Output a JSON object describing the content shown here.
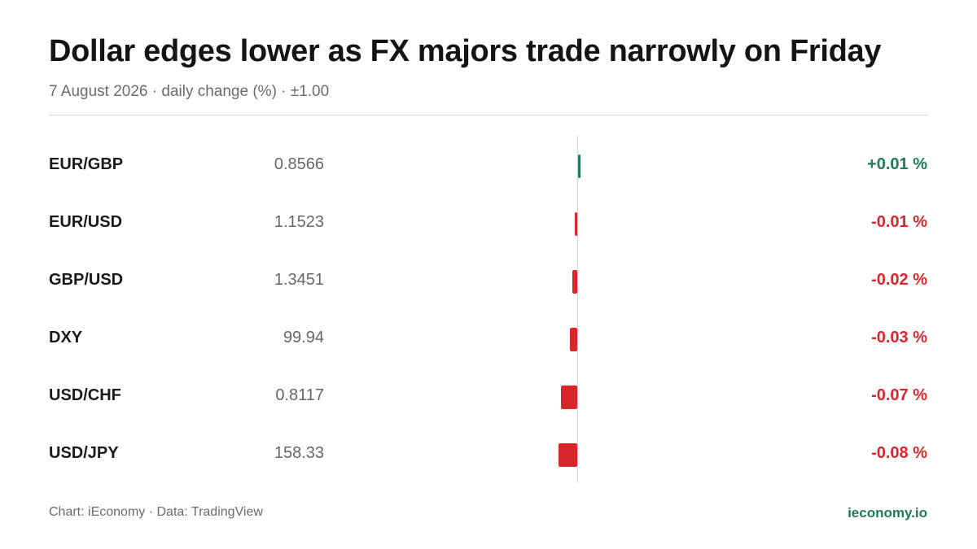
{
  "title": "Dollar edges lower as FX majors trade narrowly on Friday",
  "subtitle": "7 August 2026 · daily change (%) · ±1.00",
  "footer": {
    "source": "Chart: iEconomy · Data: TradingView",
    "brand": "ieconomy.io"
  },
  "colors": {
    "positive": "#1f7a5c",
    "negative": "#d9262c",
    "brand": "#1f7a5c"
  },
  "chart_data": {
    "type": "bar",
    "orientation": "horizontal",
    "categories": [
      "EUR/GBP",
      "EUR/USD",
      "GBP/USD",
      "DXY",
      "USD/CHF",
      "USD/JPY"
    ],
    "prices": [
      "0.8566",
      "1.1523",
      "1.3451",
      "99.94",
      "0.8117",
      "158.33"
    ],
    "values": [
      0.01,
      -0.01,
      -0.02,
      -0.03,
      -0.07,
      -0.08
    ],
    "value_labels": [
      "+0.01 %",
      "-0.01 %",
      "-0.02 %",
      "-0.03 %",
      "-0.07 %",
      "-0.08 %"
    ],
    "xlim": [
      -1.0,
      1.0
    ],
    "grid": false,
    "legend": "none"
  }
}
